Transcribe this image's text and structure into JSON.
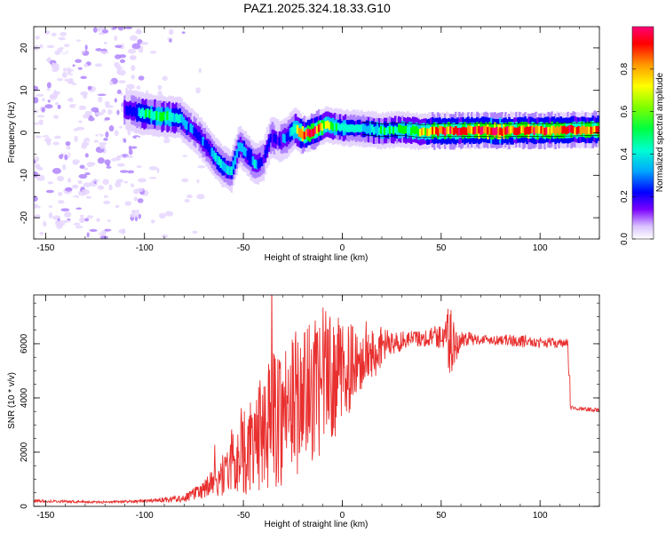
{
  "title": "PAZ1.2025.324.18.33.G10",
  "colors": {
    "snr_line": "#e8302f",
    "axis": "#000000",
    "colormap": [
      "#ffffff",
      "#e6d6ff",
      "#b085ff",
      "#6a00ff",
      "#0000ff",
      "#00bfff",
      "#00ffd0",
      "#00ff00",
      "#ffff00",
      "#ff9900",
      "#ff0000",
      "#ff0077"
    ]
  },
  "chart_data": [
    {
      "type": "heatmap",
      "title": "",
      "xlabel": "Height of straight line (km)",
      "ylabel": "Frequency (Hz)",
      "xlim": [
        -156,
        130
      ],
      "ylim": [
        -25,
        25
      ],
      "xticks": [
        "-150",
        "-100",
        "-50",
        "0",
        "50",
        "100"
      ],
      "xtick_values": [
        -150,
        -100,
        -50,
        0,
        50,
        100
      ],
      "yticks": [
        "-20",
        "-10",
        "0",
        "10",
        "20"
      ],
      "ytick_values": [
        -20,
        -10,
        0,
        10,
        20
      ],
      "ridge": {
        "x": [
          -110,
          -100,
          -90,
          -82,
          -78,
          -72,
          -68,
          -64,
          -60,
          -56,
          -52,
          -48,
          -44,
          -40,
          -36,
          -32,
          -28,
          -24,
          -20,
          -16,
          -12,
          -8,
          -4,
          0,
          10,
          20,
          30,
          40,
          50,
          60,
          70,
          80,
          90,
          100,
          110,
          130
        ],
        "freq": [
          5.5,
          4.5,
          3.8,
          3.5,
          1.5,
          -1.0,
          -3.5,
          -6.0,
          -8.0,
          -9.0,
          -3.0,
          -5.0,
          -7.5,
          -6.5,
          -1.0,
          -2.0,
          -1.0,
          1.0,
          -0.5,
          0.0,
          1.0,
          2.0,
          1.5,
          1.2,
          1.0,
          0.5,
          0.8,
          0.3,
          0.5,
          0.5,
          0.6,
          0.4,
          0.6,
          0.5,
          0.6,
          0.8
        ],
        "amplitude": [
          0.3,
          0.55,
          0.6,
          0.5,
          0.4,
          0.35,
          0.4,
          0.5,
          0.45,
          0.5,
          0.45,
          0.4,
          0.45,
          0.35,
          0.35,
          0.35,
          0.4,
          0.55,
          0.85,
          0.9,
          0.8,
          0.7,
          0.6,
          0.55,
          0.5,
          0.55,
          0.6,
          0.7,
          0.9,
          0.85,
          0.9,
          0.95,
          0.85,
          0.9,
          0.85,
          0.85
        ]
      },
      "noise_region_x": [
        -156,
        -100
      ],
      "colorbar": {
        "label": "Normalized spectral amplitude",
        "range": [
          0,
          1
        ],
        "ticks": [
          "0.0",
          "0.2",
          "0.4",
          "0.6",
          "0.8"
        ],
        "tick_values": [
          0.0,
          0.2,
          0.4,
          0.6,
          0.8
        ]
      }
    },
    {
      "type": "line",
      "title": "",
      "xlabel": "Height of straight line (km)",
      "ylabel": "SNR (10 * v/v)",
      "xlim": [
        -156,
        130
      ],
      "ylim": [
        0,
        7800
      ],
      "xticks": [
        "-150",
        "-100",
        "-50",
        "0",
        "50",
        "100"
      ],
      "xtick_values": [
        -150,
        -100,
        -50,
        0,
        50,
        100
      ],
      "yticks": [
        "0",
        "2000",
        "4000",
        "6000"
      ],
      "ytick_values": [
        0,
        2000,
        4000,
        6000
      ],
      "x": [
        -156,
        -140,
        -120,
        -100,
        -90,
        -80,
        -70,
        -60,
        -55,
        -50,
        -45,
        -40,
        -35,
        -30,
        -25,
        -20,
        -15,
        -10,
        -5,
        0,
        5,
        10,
        15,
        20,
        25,
        30,
        35,
        40,
        45,
        50,
        52,
        55,
        58,
        60,
        70,
        80,
        90,
        100,
        105,
        110,
        114,
        115,
        120,
        130
      ],
      "y": [
        200,
        180,
        150,
        200,
        250,
        300,
        600,
        1200,
        1700,
        2000,
        2200,
        2800,
        3300,
        3500,
        3800,
        4000,
        4200,
        4600,
        4800,
        4900,
        5200,
        5500,
        5700,
        5900,
        6000,
        6100,
        6200,
        6200,
        6250,
        6300,
        6400,
        6000,
        5900,
        6200,
        6150,
        6150,
        6100,
        6050,
        6050,
        6000,
        6000,
        3650,
        3600,
        3550
      ],
      "noise_amp": [
        0.25,
        0.25,
        0.25,
        0.3,
        0.4,
        0.5,
        0.6,
        0.7,
        0.8,
        0.8,
        0.8,
        0.8,
        0.8,
        0.8,
        0.7,
        0.7,
        0.6,
        0.6,
        0.5,
        0.4,
        0.3,
        0.25,
        0.2,
        0.12,
        0.08,
        0.06,
        0.05,
        0.05,
        0.06,
        0.08,
        0.15,
        0.25,
        0.1,
        0.05,
        0.03,
        0.03,
        0.04,
        0.03,
        0.03,
        0.03,
        0.03,
        0.02,
        0.02,
        0.02
      ]
    }
  ]
}
